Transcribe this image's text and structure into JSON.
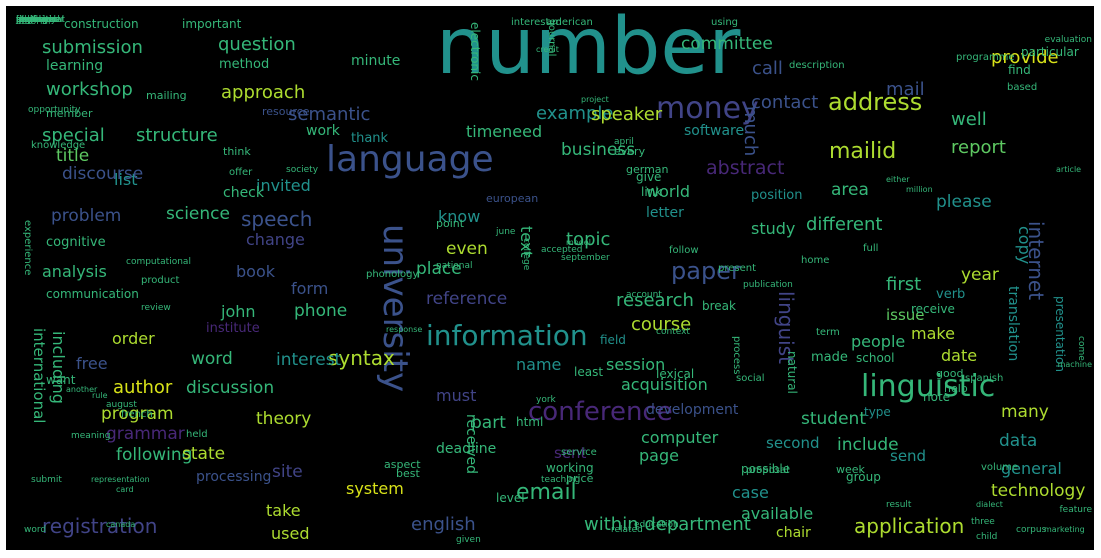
{
  "palette": {
    "background": "#000000",
    "teal": "#2a9d8f",
    "green": "#5ec962",
    "yellowgreen": "#addc30",
    "yellow": "#d8e219",
    "blue": "#3b528b",
    "indigo": "#414487",
    "purple": "#482878",
    "cyan": "#21918c",
    "mint": "#35b779"
  },
  "words": [
    {
      "text": "number",
      "c": "cyan"
    },
    {
      "text": "language",
      "c": "blue"
    },
    {
      "text": "university",
      "c": "blue"
    },
    {
      "text": "linguistic",
      "c": "mint"
    },
    {
      "text": "money",
      "c": "indigo"
    },
    {
      "text": "information",
      "c": "cyan"
    },
    {
      "text": "conference",
      "c": "purple"
    },
    {
      "text": "mailid",
      "c": "yellowgreen"
    },
    {
      "text": "address",
      "c": "yellowgreen"
    },
    {
      "text": "paper",
      "c": "blue"
    },
    {
      "text": "email",
      "c": "mint"
    },
    {
      "text": "registration",
      "c": "indigo"
    },
    {
      "text": "application",
      "c": "yellowgreen"
    },
    {
      "text": "within department",
      "c": "mint"
    },
    {
      "text": "english",
      "c": "blue"
    },
    {
      "text": "speech",
      "c": "blue"
    },
    {
      "text": "syntax",
      "c": "yellowgreen"
    },
    {
      "text": "internet",
      "c": "blue"
    },
    {
      "text": "linguist",
      "c": "indigo"
    },
    {
      "text": "submission",
      "c": "mint"
    },
    {
      "text": "question",
      "c": "mint"
    },
    {
      "text": "workshop",
      "c": "mint"
    },
    {
      "text": "approach",
      "c": "yellowgreen"
    },
    {
      "text": "semantic",
      "c": "blue"
    },
    {
      "text": "committee",
      "c": "mint"
    },
    {
      "text": "contact",
      "c": "blue"
    },
    {
      "text": "provide",
      "c": "yellow"
    },
    {
      "text": "mail",
      "c": "blue"
    },
    {
      "text": "well",
      "c": "mint"
    },
    {
      "text": "call",
      "c": "blue"
    },
    {
      "text": "example",
      "c": "cyan"
    },
    {
      "text": "speaker",
      "c": "yellowgreen"
    },
    {
      "text": "much",
      "c": "blue"
    },
    {
      "text": "software",
      "c": "cyan"
    },
    {
      "text": "report",
      "c": "green"
    },
    {
      "text": "business",
      "c": "mint"
    },
    {
      "text": "abstract",
      "c": "purple"
    },
    {
      "text": "timeneed",
      "c": "mint"
    },
    {
      "text": "special",
      "c": "mint"
    },
    {
      "text": "structure",
      "c": "mint"
    },
    {
      "text": "title",
      "c": "green"
    },
    {
      "text": "list",
      "c": "cyan"
    },
    {
      "text": "discourse",
      "c": "blue"
    },
    {
      "text": "invited",
      "c": "cyan"
    },
    {
      "text": "problem",
      "c": "blue"
    },
    {
      "text": "science",
      "c": "mint"
    },
    {
      "text": "change",
      "c": "indigo"
    },
    {
      "text": "know",
      "c": "cyan"
    },
    {
      "text": "topic",
      "c": "mint"
    },
    {
      "text": "text",
      "c": "mint"
    },
    {
      "text": "even",
      "c": "yellowgreen"
    },
    {
      "text": "place",
      "c": "mint"
    },
    {
      "text": "world",
      "c": "mint"
    },
    {
      "text": "letter",
      "c": "cyan"
    },
    {
      "text": "study",
      "c": "mint"
    },
    {
      "text": "different",
      "c": "mint"
    },
    {
      "text": "area",
      "c": "mint"
    },
    {
      "text": "please",
      "c": "cyan"
    },
    {
      "text": "copy",
      "c": "cyan"
    },
    {
      "text": "year",
      "c": "yellowgreen"
    },
    {
      "text": "first",
      "c": "mint"
    },
    {
      "text": "analysis",
      "c": "mint"
    },
    {
      "text": "book",
      "c": "blue"
    },
    {
      "text": "form",
      "c": "blue"
    },
    {
      "text": "phone",
      "c": "mint"
    },
    {
      "text": "john",
      "c": "mint"
    },
    {
      "text": "order",
      "c": "yellowgreen"
    },
    {
      "text": "free",
      "c": "blue"
    },
    {
      "text": "author",
      "c": "yellow"
    },
    {
      "text": "word",
      "c": "mint"
    },
    {
      "text": "interest",
      "c": "cyan"
    },
    {
      "text": "reference",
      "c": "indigo"
    },
    {
      "text": "research",
      "c": "mint"
    },
    {
      "text": "course",
      "c": "yellowgreen"
    },
    {
      "text": "issue",
      "c": "green"
    },
    {
      "text": "make",
      "c": "yellowgreen"
    },
    {
      "text": "people",
      "c": "mint"
    },
    {
      "text": "date",
      "c": "yellowgreen"
    },
    {
      "text": "name",
      "c": "cyan"
    },
    {
      "text": "session",
      "c": "mint"
    },
    {
      "text": "discussion",
      "c": "mint"
    },
    {
      "text": "program",
      "c": "yellowgreen"
    },
    {
      "text": "grammar",
      "c": "purple"
    },
    {
      "text": "theory",
      "c": "yellowgreen"
    },
    {
      "text": "must",
      "c": "indigo"
    },
    {
      "text": "acquisition",
      "c": "mint"
    },
    {
      "text": "many",
      "c": "yellowgreen"
    },
    {
      "text": "student",
      "c": "mint"
    },
    {
      "text": "data",
      "c": "cyan"
    },
    {
      "text": "including",
      "c": "mint"
    },
    {
      "text": "international",
      "c": "mint"
    },
    {
      "text": "following",
      "c": "mint"
    },
    {
      "text": "state",
      "c": "yellowgreen"
    },
    {
      "text": "site",
      "c": "indigo"
    },
    {
      "text": "part",
      "c": "mint"
    },
    {
      "text": "sent",
      "c": "purple"
    },
    {
      "text": "computer",
      "c": "mint"
    },
    {
      "text": "second",
      "c": "cyan"
    },
    {
      "text": "include",
      "c": "mint"
    },
    {
      "text": "page",
      "c": "mint"
    },
    {
      "text": "send",
      "c": "cyan"
    },
    {
      "text": "general",
      "c": "cyan"
    },
    {
      "text": "system",
      "c": "yellow"
    },
    {
      "text": "take",
      "c": "yellowgreen"
    },
    {
      "text": "case",
      "c": "cyan"
    },
    {
      "text": "available",
      "c": "mint"
    },
    {
      "text": "technology",
      "c": "yellowgreen"
    },
    {
      "text": "used",
      "c": "yellowgreen"
    },
    {
      "text": "chair",
      "c": "yellowgreen"
    },
    {
      "text": "received",
      "c": "mint"
    },
    {
      "text": "deadline",
      "c": "mint"
    },
    {
      "text": "processing",
      "c": "blue"
    },
    {
      "text": "development",
      "c": "blue"
    },
    {
      "text": "translation",
      "c": "cyan"
    },
    {
      "text": "presentation",
      "c": "cyan"
    },
    {
      "text": "position",
      "c": "cyan"
    },
    {
      "text": "check",
      "c": "mint"
    },
    {
      "text": "thank",
      "c": "cyan"
    },
    {
      "text": "work",
      "c": "mint"
    },
    {
      "text": "method",
      "c": "mint"
    },
    {
      "text": "learning",
      "c": "mint"
    },
    {
      "text": "minute",
      "c": "mint"
    },
    {
      "text": "cognitive",
      "c": "mint"
    },
    {
      "text": "communication",
      "c": "mint"
    },
    {
      "text": "institute",
      "c": "purple"
    },
    {
      "text": "want",
      "c": "mint"
    },
    {
      "text": "construction",
      "c": "mint"
    },
    {
      "text": "important",
      "c": "mint"
    },
    {
      "text": "member",
      "c": "mint"
    },
    {
      "text": "resource",
      "c": "blue"
    },
    {
      "text": "break",
      "c": "mint"
    },
    {
      "text": "field",
      "c": "cyan"
    },
    {
      "text": "verb",
      "c": "cyan"
    },
    {
      "text": "receive",
      "c": "mint"
    },
    {
      "text": "made",
      "c": "mint"
    },
    {
      "text": "school",
      "c": "mint"
    },
    {
      "text": "natural",
      "c": "mint"
    },
    {
      "text": "type",
      "c": "cyan"
    },
    {
      "text": "note",
      "c": "mint"
    },
    {
      "text": "find",
      "c": "mint"
    },
    {
      "text": "based",
      "c": "mint"
    },
    {
      "text": "give",
      "c": "mint"
    },
    {
      "text": "german",
      "c": "mint"
    },
    {
      "text": "link",
      "c": "mint"
    },
    {
      "text": "point",
      "c": "mint"
    },
    {
      "text": "european",
      "c": "blue"
    },
    {
      "text": "lexical",
      "c": "mint"
    },
    {
      "text": "html",
      "c": "mint"
    },
    {
      "text": "group",
      "c": "mint"
    },
    {
      "text": "week",
      "c": "mint"
    },
    {
      "text": "working",
      "c": "mint"
    },
    {
      "text": "possible",
      "c": "mint"
    },
    {
      "text": "volume",
      "c": "mint"
    },
    {
      "text": "help",
      "c": "mint"
    },
    {
      "text": "spanish",
      "c": "mint"
    },
    {
      "text": "good",
      "c": "mint"
    },
    {
      "text": "aspect",
      "c": "mint"
    },
    {
      "text": "best",
      "c": "mint"
    },
    {
      "text": "least",
      "c": "mint"
    },
    {
      "text": "level",
      "c": "mint"
    },
    {
      "text": "price",
      "c": "mint"
    },
    {
      "text": "interested",
      "c": "mint"
    },
    {
      "text": "american",
      "c": "mint"
    },
    {
      "text": "using",
      "c": "mint"
    },
    {
      "text": "journal",
      "c": "mint"
    },
    {
      "text": "electronic",
      "c": "mint"
    },
    {
      "text": "particular",
      "c": "mint"
    },
    {
      "text": "programme",
      "c": "mint"
    },
    {
      "text": "description",
      "c": "mint"
    },
    {
      "text": "knowledge",
      "c": "mint"
    },
    {
      "text": "mailing",
      "c": "mint"
    },
    {
      "text": "think",
      "c": "mint"
    },
    {
      "text": "offer",
      "c": "mint"
    },
    {
      "text": "every",
      "c": "mint"
    },
    {
      "text": "follow",
      "c": "mint"
    },
    {
      "text": "present",
      "c": "mint"
    },
    {
      "text": "phonology",
      "c": "mint"
    },
    {
      "text": "june",
      "c": "mint"
    },
    {
      "text": "september",
      "c": "mint"
    },
    {
      "text": "account",
      "c": "mint"
    },
    {
      "text": "april",
      "c": "mint"
    },
    {
      "text": "publication",
      "c": "mint"
    },
    {
      "text": "process",
      "c": "mint"
    },
    {
      "text": "home",
      "c": "mint"
    },
    {
      "text": "full",
      "c": "mint"
    },
    {
      "text": "term",
      "c": "mint"
    },
    {
      "text": "context",
      "c": "mint"
    },
    {
      "text": "product",
      "c": "mint"
    },
    {
      "text": "computational",
      "c": "mint"
    },
    {
      "text": "experience",
      "c": "mint"
    },
    {
      "text": "social",
      "c": "mint"
    },
    {
      "text": "held",
      "c": "mint"
    },
    {
      "text": "york",
      "c": "mint"
    },
    {
      "text": "college",
      "c": "mint"
    },
    {
      "text": "national",
      "c": "mint"
    },
    {
      "text": "french",
      "c": "mint"
    },
    {
      "text": "august",
      "c": "mint"
    },
    {
      "text": "service",
      "c": "mint"
    },
    {
      "text": "teaching",
      "c": "mint"
    },
    {
      "text": "proposal",
      "c": "mint"
    },
    {
      "text": "related",
      "c": "mint"
    },
    {
      "text": "education",
      "c": "mint"
    },
    {
      "text": "given",
      "c": "mint"
    },
    {
      "text": "child",
      "c": "mint"
    },
    {
      "text": "three",
      "c": "mint"
    },
    {
      "text": "corpus",
      "c": "mint"
    },
    {
      "text": "feature",
      "c": "mint"
    },
    {
      "text": "dialect",
      "c": "mint"
    },
    {
      "text": "result",
      "c": "mint"
    },
    {
      "text": "come",
      "c": "mint"
    },
    {
      "text": "machine",
      "c": "mint"
    },
    {
      "text": "marketing",
      "c": "mint"
    },
    {
      "text": "tutorial",
      "c": "mint"
    },
    {
      "text": "opportunity",
      "c": "mint"
    },
    {
      "text": "another",
      "c": "mint"
    },
    {
      "text": "rule",
      "c": "mint"
    },
    {
      "text": "review",
      "c": "mint"
    },
    {
      "text": "response",
      "c": "mint"
    },
    {
      "text": "model",
      "c": "mint"
    },
    {
      "text": "accepted",
      "c": "mint"
    },
    {
      "text": "meaning",
      "c": "mint"
    },
    {
      "text": "submit",
      "c": "mint"
    },
    {
      "text": "representation",
      "c": "mint"
    },
    {
      "text": "card",
      "c": "mint"
    },
    {
      "text": "canada",
      "c": "mint"
    },
    {
      "text": "word",
      "c": "mint"
    },
    {
      "text": "society",
      "c": "mint"
    },
    {
      "text": "either",
      "c": "mint"
    },
    {
      "text": "million",
      "c": "mint"
    },
    {
      "text": "credit",
      "c": "mint"
    },
    {
      "text": "evaluation",
      "c": "mint"
    },
    {
      "text": "article",
      "c": "mint"
    },
    {
      "text": "project",
      "c": "mint"
    },
    {
      "text": "participant",
      "c": "mint"
    },
    {
      "text": "syntactic",
      "c": "mint"
    },
    {
      "text": "theoretical",
      "c": "mint"
    },
    {
      "text": "night",
      "c": "mint"
    },
    {
      "text": "standard",
      "c": "mint"
    },
    {
      "text": "germany",
      "c": "mint"
    },
    {
      "text": "published",
      "c": "mint"
    },
    {
      "text": "march",
      "c": "mint"
    },
    {
      "text": "main",
      "c": "mint"
    },
    {
      "text": "read",
      "c": "mint"
    },
    {
      "text": "researcher",
      "c": "mint"
    },
    {
      "text": "person",
      "c": "mint"
    },
    {
      "text": "july",
      "c": "mint"
    },
    {
      "text": "file",
      "c": "mint"
    },
    {
      "text": "major",
      "c": "mint"
    },
    {
      "text": "anyone",
      "c": "mint"
    },
    {
      "text": "sent",
      "c": "mint"
    },
    {
      "text": "among",
      "c": "mint"
    }
  ]
}
